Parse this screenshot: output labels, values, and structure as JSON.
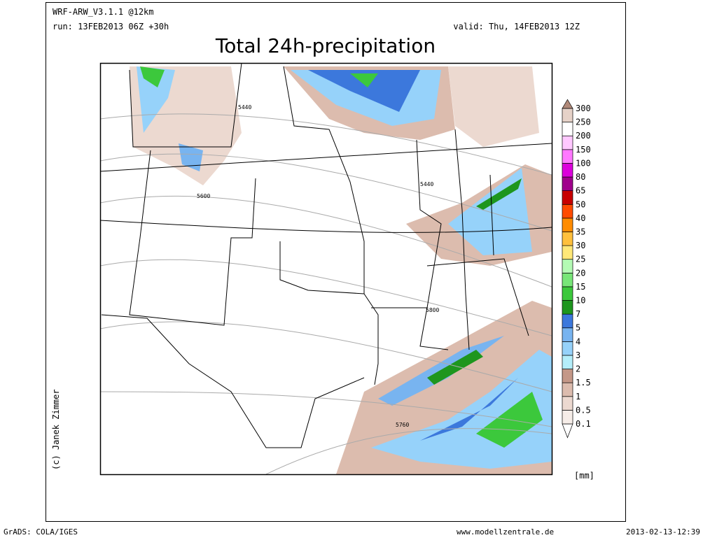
{
  "header": {
    "model": "WRF-ARW_V3.1.1 @12km",
    "run": "run: 13FEB2013 06Z +30h",
    "valid": "valid: Thu, 14FEB2013 12Z",
    "title": "Total 24h-precipitation"
  },
  "copyright": "(c) Janek Zimmer",
  "contour_labels": [
    "5440",
    "5440",
    "5600",
    "5800",
    "5760"
  ],
  "colorbar": {
    "unit": "[mm]",
    "levels": [
      0.1,
      0.5,
      1,
      1.5,
      2,
      3,
      4,
      5,
      7,
      10,
      15,
      20,
      25,
      30,
      35,
      40,
      50,
      65,
      80,
      100,
      150,
      200,
      250,
      300
    ],
    "colors": [
      "#ffffff",
      "#f6ede8",
      "#ecd9d0",
      "#dcbcae",
      "#c49888",
      "#b4eefa",
      "#96d2fa",
      "#78b4f0",
      "#3c78dc",
      "#1e961e",
      "#3cc83c",
      "#78e678",
      "#b4fab4",
      "#ffe878",
      "#ffc03c",
      "#ff8c00",
      "#ff4b00",
      "#c80000",
      "#a0008c",
      "#dc00dc",
      "#ff78ff",
      "#ffc8ff",
      "#ffffff",
      "#e6d2c8",
      "#b08878"
    ]
  },
  "footer": {
    "left": "GrADS: COLA/IGES",
    "center": "www.modellzentrale.de",
    "right": "2013-02-13-12:39"
  }
}
